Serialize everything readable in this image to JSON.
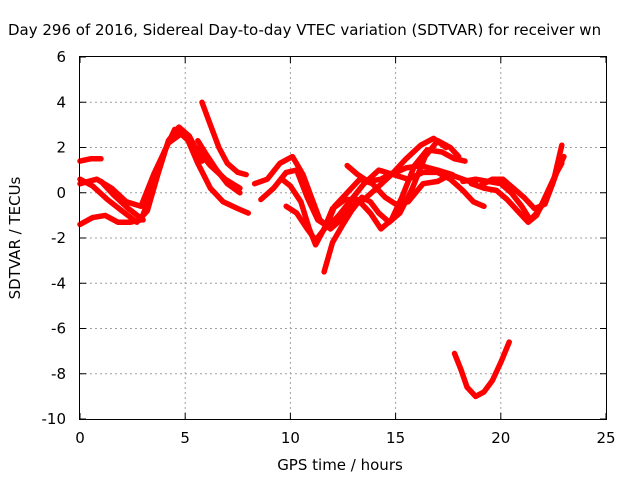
{
  "chart_data": {
    "type": "line",
    "title": "Day 296 of 2016, Sidereal Day-to-day VTEC variation (SDTVAR) for receiver wn",
    "xlabel": "GPS time / hours",
    "ylabel": "SDTVAR / TECUs",
    "xlim": [
      0,
      25
    ],
    "ylim": [
      -10,
      6
    ],
    "xticks": [
      "0",
      "5",
      "10",
      "15",
      "20",
      "25"
    ],
    "yticks": [
      "-10",
      "-8",
      "-6",
      "-4",
      "-2",
      "0",
      "2",
      "4",
      "6"
    ],
    "grid": true,
    "legend": "none",
    "color": "#ff0000",
    "series": [
      {
        "name": "track-1",
        "points": [
          [
            0,
            0.4
          ],
          [
            0.8,
            0.6
          ],
          [
            1.5,
            0.2
          ],
          [
            2.2,
            -0.4
          ],
          [
            2.9,
            -0.6
          ],
          [
            3.5,
            0.8
          ],
          [
            4.2,
            2.2
          ],
          [
            4.8,
            2.6
          ],
          [
            5.5,
            2.0
          ],
          [
            6.2,
            1.2
          ],
          [
            6.9,
            0.6
          ],
          [
            7.6,
            0.2
          ]
        ]
      },
      {
        "name": "track-2",
        "points": [
          [
            0,
            1.4
          ],
          [
            0.5,
            1.5
          ],
          [
            1.0,
            1.5
          ]
        ]
      },
      {
        "name": "track-3",
        "points": [
          [
            0,
            -1.4
          ],
          [
            0.6,
            -1.1
          ],
          [
            1.2,
            -1.0
          ],
          [
            1.8,
            -1.3
          ],
          [
            2.4,
            -1.3
          ],
          [
            2.9,
            -1.2
          ],
          [
            3.4,
            0.0
          ],
          [
            4.0,
            1.8
          ],
          [
            4.5,
            2.8
          ],
          [
            5.0,
            2.6
          ],
          [
            5.6,
            1.3
          ],
          [
            6.2,
            0.2
          ],
          [
            6.8,
            -0.4
          ],
          [
            7.5,
            -0.7
          ],
          [
            8.0,
            -0.9
          ]
        ]
      },
      {
        "name": "track-4",
        "points": [
          [
            0,
            0.6
          ],
          [
            0.6,
            0.3
          ],
          [
            1.3,
            -0.3
          ],
          [
            2.0,
            -0.8
          ],
          [
            2.7,
            -1.3
          ],
          [
            3.2,
            -0.8
          ],
          [
            3.7,
            0.8
          ],
          [
            4.2,
            2.3
          ],
          [
            4.7,
            2.9
          ],
          [
            5.2,
            2.5
          ],
          [
            5.8,
            1.4
          ]
        ]
      },
      {
        "name": "track-5",
        "points": [
          [
            1.0,
            0.5
          ],
          [
            1.6,
            -0.1
          ],
          [
            2.3,
            -0.7
          ],
          [
            3.0,
            -1.2
          ]
        ]
      },
      {
        "name": "track-6",
        "points": [
          [
            5.8,
            4.0
          ],
          [
            6.2,
            3.0
          ],
          [
            6.6,
            2.0
          ],
          [
            7.0,
            1.3
          ],
          [
            7.5,
            0.9
          ],
          [
            7.9,
            0.8
          ]
        ]
      },
      {
        "name": "track-7",
        "points": [
          [
            5.6,
            2.3
          ],
          [
            6.0,
            1.7
          ],
          [
            6.5,
            1.0
          ],
          [
            7.0,
            0.4
          ],
          [
            7.6,
            0.0
          ]
        ]
      },
      {
        "name": "track-8",
        "points": [
          [
            8.3,
            0.4
          ],
          [
            8.9,
            0.6
          ],
          [
            9.5,
            1.3
          ],
          [
            10.1,
            1.6
          ],
          [
            10.6,
            0.8
          ],
          [
            11.0,
            -0.2
          ],
          [
            11.4,
            -1.2
          ],
          [
            11.9,
            -1.6
          ],
          [
            12.4,
            -1.2
          ],
          [
            12.9,
            -0.6
          ],
          [
            13.5,
            -0.3
          ],
          [
            14.1,
            0.2
          ],
          [
            14.8,
            0.8
          ],
          [
            15.5,
            1.1
          ],
          [
            16.2,
            1.2
          ],
          [
            17.0,
            1.0
          ],
          [
            17.7,
            0.8
          ]
        ]
      },
      {
        "name": "track-9",
        "points": [
          [
            8.6,
            -0.3
          ],
          [
            9.2,
            0.2
          ],
          [
            9.8,
            0.9
          ],
          [
            10.3,
            1.0
          ],
          [
            10.8,
            -0.2
          ],
          [
            11.3,
            -1.2
          ],
          [
            11.8,
            -1.5
          ],
          [
            12.3,
            -1.0
          ],
          [
            12.9,
            -0.3
          ],
          [
            13.5,
            0.4
          ],
          [
            14.2,
            1.0
          ],
          [
            14.9,
            0.8
          ],
          [
            15.6,
            0.6
          ],
          [
            16.3,
            0.9
          ],
          [
            17.0,
            0.9
          ],
          [
            17.6,
            0.6
          ],
          [
            18.2,
            0.1
          ],
          [
            18.7,
            -0.4
          ],
          [
            19.2,
            -0.6
          ]
        ]
      },
      {
        "name": "track-10",
        "points": [
          [
            9.6,
            0.6
          ],
          [
            10.0,
            0.3
          ],
          [
            10.5,
            -0.4
          ],
          [
            10.9,
            -1.6
          ],
          [
            11.2,
            -2.3
          ],
          [
            11.6,
            -1.6
          ],
          [
            12.0,
            -0.7
          ],
          [
            12.6,
            -0.3
          ],
          [
            13.2,
            -0.3
          ],
          [
            13.8,
            -0.9
          ],
          [
            14.3,
            -1.6
          ],
          [
            14.8,
            -1.2
          ],
          [
            15.3,
            -0.2
          ],
          [
            15.9,
            1.2
          ],
          [
            16.5,
            1.9
          ],
          [
            17.2,
            1.8
          ],
          [
            17.8,
            1.5
          ],
          [
            18.3,
            1.4
          ]
        ]
      },
      {
        "name": "track-11",
        "points": [
          [
            9.8,
            -0.6
          ],
          [
            10.3,
            -0.9
          ],
          [
            10.8,
            -1.6
          ],
          [
            11.2,
            -2.1
          ],
          [
            11.7,
            -1.5
          ],
          [
            12.1,
            -0.6
          ],
          [
            12.7,
            0.0
          ],
          [
            13.3,
            0.6
          ],
          [
            13.9,
            0.4
          ],
          [
            14.5,
            -0.2
          ],
          [
            15.0,
            -0.5
          ],
          [
            15.6,
            -0.4
          ],
          [
            16.3,
            0.4
          ],
          [
            17.0,
            0.5
          ],
          [
            17.6,
            0.8
          ],
          [
            18.2,
            0.6
          ],
          [
            18.8,
            0.4
          ]
        ]
      },
      {
        "name": "track-12",
        "points": [
          [
            11.6,
            -3.5
          ],
          [
            12.0,
            -2.2
          ],
          [
            12.5,
            -1.4
          ],
          [
            12.9,
            -0.8
          ],
          [
            13.4,
            -0.2
          ],
          [
            13.8,
            -0.4
          ],
          [
            14.2,
            -0.9
          ],
          [
            14.7,
            -1.3
          ],
          [
            15.2,
            -0.9
          ],
          [
            15.8,
            0.2
          ],
          [
            16.4,
            1.6
          ],
          [
            17.0,
            2.3
          ],
          [
            17.6,
            2.0
          ],
          [
            18.0,
            1.6
          ]
        ]
      },
      {
        "name": "track-13",
        "points": [
          [
            12.7,
            1.2
          ],
          [
            13.2,
            0.8
          ],
          [
            13.7,
            0.5
          ],
          [
            14.3,
            0.6
          ],
          [
            14.9,
            0.9
          ],
          [
            15.5,
            1.5
          ],
          [
            16.2,
            2.1
          ],
          [
            16.8,
            2.4
          ],
          [
            17.4,
            2.0
          ]
        ]
      },
      {
        "name": "track-14",
        "points": [
          [
            18.2,
            0.5
          ],
          [
            18.8,
            0.6
          ],
          [
            19.4,
            0.5
          ],
          [
            20.0,
            0.4
          ],
          [
            20.5,
            0.0
          ],
          [
            21.0,
            -0.6
          ],
          [
            21.4,
            -1.2
          ],
          [
            21.8,
            -0.8
          ],
          [
            22.3,
            0.0
          ],
          [
            22.7,
            1.0
          ],
          [
            23.0,
            1.6
          ]
        ]
      },
      {
        "name": "track-15",
        "points": [
          [
            18.6,
            0.4
          ],
          [
            19.2,
            0.2
          ],
          [
            19.8,
            0.1
          ],
          [
            20.3,
            -0.3
          ],
          [
            20.8,
            -0.8
          ],
          [
            21.3,
            -1.3
          ],
          [
            21.7,
            -1.0
          ],
          [
            22.2,
            0.0
          ],
          [
            22.6,
            0.8
          ],
          [
            22.9,
            1.3
          ]
        ]
      },
      {
        "name": "track-16",
        "points": [
          [
            19.0,
            0.3
          ],
          [
            19.6,
            0.6
          ],
          [
            20.1,
            0.6
          ],
          [
            20.6,
            0.2
          ],
          [
            21.1,
            -0.2
          ],
          [
            21.6,
            -0.7
          ],
          [
            22.1,
            -0.5
          ],
          [
            22.5,
            0.5
          ],
          [
            22.9,
            2.1
          ]
        ]
      },
      {
        "name": "track-17",
        "points": [
          [
            17.8,
            -7.1
          ],
          [
            18.1,
            -7.8
          ],
          [
            18.4,
            -8.6
          ],
          [
            18.8,
            -9.0
          ],
          [
            19.2,
            -8.8
          ],
          [
            19.6,
            -8.3
          ],
          [
            20.0,
            -7.5
          ],
          [
            20.4,
            -6.6
          ]
        ]
      }
    ]
  }
}
